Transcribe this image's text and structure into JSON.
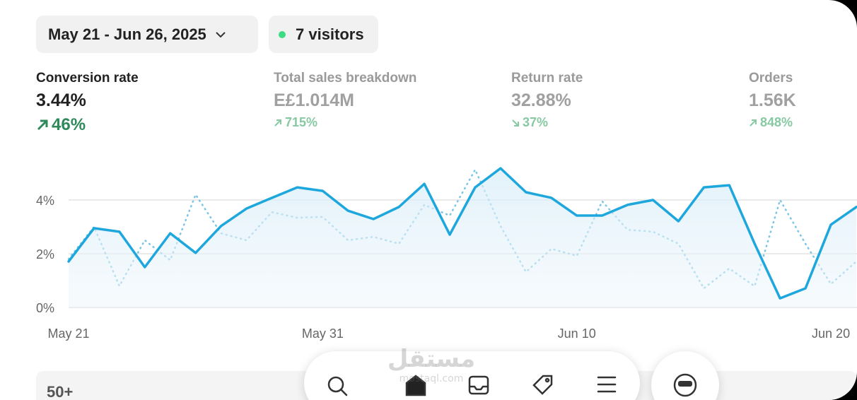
{
  "header": {
    "date_range": "May 21 - Jun 26, 2025",
    "visitors": "7 visitors"
  },
  "metrics": [
    {
      "label": "Conversion rate",
      "value": "3.44%",
      "change": "46%",
      "direction": "up",
      "active": true
    },
    {
      "label": "Total sales breakdown",
      "value": "E£1.014M",
      "change": "715%",
      "direction": "up",
      "active": false
    },
    {
      "label": "Return rate",
      "value": "32.88%",
      "change": "37%",
      "direction": "down",
      "active": false
    },
    {
      "label": "Orders",
      "value": "1.56K",
      "change": "848%",
      "direction": "up",
      "active": false
    }
  ],
  "chart_data": {
    "type": "line",
    "categories": [
      "May 21",
      null,
      null,
      null,
      null,
      null,
      null,
      null,
      null,
      null,
      "May 31",
      null,
      null,
      null,
      null,
      null,
      null,
      null,
      null,
      null,
      "Jun 10",
      null,
      null,
      null,
      null,
      null,
      null,
      null,
      null,
      null,
      "Jun 20",
      null
    ],
    "series": [
      {
        "color": "#1ea7dc",
        "style": "solid",
        "fill": true,
        "values": [
          1.71,
          2.95,
          2.82,
          1.5,
          2.76,
          2.03,
          3.03,
          3.68,
          4.08,
          4.47,
          4.34,
          3.6,
          3.29,
          3.74,
          4.6,
          2.71,
          4.47,
          5.18,
          4.29,
          4.08,
          3.42,
          3.42,
          3.82,
          4.0,
          3.21,
          4.47,
          4.55,
          2.37,
          0.34,
          0.71,
          3.08,
          3.74
        ]
      },
      {
        "color": "#7cc6e4",
        "style": "dotted",
        "fill": false,
        "values": [
          1.8,
          3.0,
          0.8,
          2.5,
          1.76,
          4.2,
          2.76,
          2.5,
          3.55,
          3.34,
          3.37,
          2.5,
          2.63,
          2.37,
          3.82,
          3.42,
          5.13,
          3.03,
          1.32,
          2.18,
          1.92,
          3.95,
          2.89,
          2.82,
          2.37,
          0.71,
          1.45,
          0.79,
          4.0,
          2.37,
          0.87,
          1.71
        ]
      }
    ],
    "ylim": [
      0,
      5.5
    ],
    "yticks": [
      {
        "value": 0,
        "label": "0%"
      },
      {
        "value": 2,
        "label": "2%"
      },
      {
        "value": 4,
        "label": "4%"
      }
    ],
    "grid": true
  },
  "footer": {
    "count": "50+"
  },
  "watermark": {
    "arabic": "مستقل",
    "latin": "mostaql.com"
  }
}
